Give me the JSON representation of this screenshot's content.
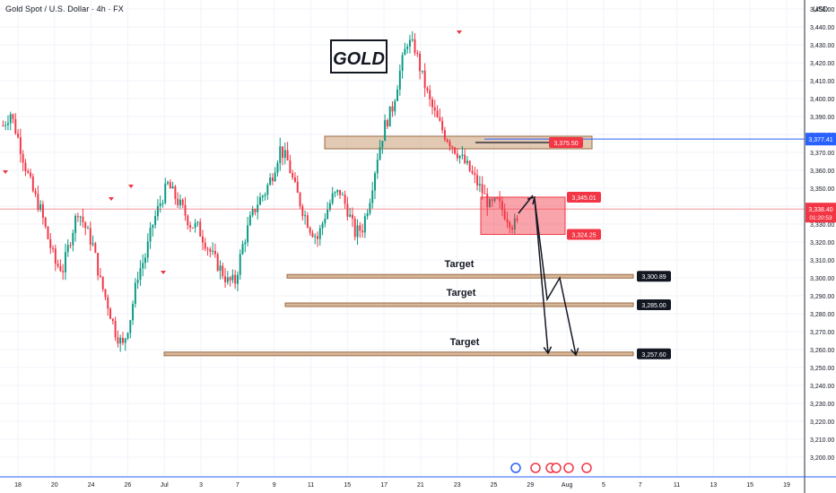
{
  "header": {
    "symbol_line": "Gold Spot / U.S. Dollar · 4h · FX",
    "currency": "USD"
  },
  "annotation_title": "GOLD",
  "colors": {
    "bull": "#089981",
    "bear": "#f23645",
    "zone_fill": "#d7b79a",
    "zone_stroke": "#9b6a42",
    "box_fill": "#f23645",
    "blue_line": "#2962ff",
    "grid": "#f0f3fa"
  },
  "chart_data": {
    "type": "candlestick",
    "title": "",
    "xlabel": "",
    "ylabel": "",
    "ylim": [
      3195,
      3455
    ],
    "y_ticks": [
      "3,200.00",
      "3,210.00",
      "3,220.00",
      "3,230.00",
      "3,240.00",
      "3,250.00",
      "3,260.00",
      "3,270.00",
      "3,280.00",
      "3,290.00",
      "3,300.00",
      "3,310.00",
      "3,320.00",
      "3,330.00",
      "3,340.00",
      "3,350.00",
      "3,360.00",
      "3,370.00",
      "3,380.00",
      "3,390.00",
      "3,400.00",
      "3,410.00",
      "3,420.00",
      "3,430.00",
      "3,440.00",
      "3,450.00"
    ],
    "x_ticks": [
      "18",
      "20",
      "24",
      "26",
      "Jul",
      "3",
      "7",
      "9",
      "11",
      "15",
      "17",
      "21",
      "23",
      "25",
      "29",
      "Aug",
      "5",
      "7",
      "11",
      "13",
      "15",
      "19"
    ],
    "ohlc_anchor_closes": [
      3385,
      3392,
      3378,
      3362,
      3348,
      3338,
      3322,
      3308,
      3305,
      3322,
      3338,
      3328,
      3318,
      3298,
      3285,
      3270,
      3262,
      3278,
      3302,
      3312,
      3330,
      3342,
      3352,
      3345,
      3338,
      3330,
      3328,
      3320,
      3312,
      3305,
      3298,
      3298,
      3318,
      3332,
      3342,
      3348,
      3358,
      3372,
      3365,
      3350,
      3338,
      3328,
      3322,
      3335,
      3345,
      3348,
      3338,
      3325,
      3328,
      3345,
      3368,
      3385,
      3395,
      3415,
      3432,
      3428,
      3412,
      3398,
      3388,
      3380,
      3374,
      3368,
      3362,
      3355,
      3348,
      3340,
      3342,
      3336,
      3330
    ],
    "levels": [
      {
        "label": "3,377.41",
        "value": 3377.41,
        "style": "blue"
      },
      {
        "label": "3,375.50",
        "value": 3375.5,
        "style": "red"
      },
      {
        "label": "3,345.01",
        "value": 3345.01,
        "style": "red"
      },
      {
        "label": "3,338.40",
        "value": 3338.4,
        "style": "current"
      },
      {
        "label": "3,324.25",
        "value": 3324.25,
        "style": "red"
      },
      {
        "label": "3,300.89",
        "value": 3300.89,
        "style": "dark"
      },
      {
        "label": "3,285.00",
        "value": 3285.0,
        "style": "dark"
      },
      {
        "label": "3,257.60",
        "value": 3257.6,
        "style": "dark"
      }
    ],
    "countdown": "01:20:53",
    "targets": [
      {
        "label": "Target",
        "value": 3300.89
      },
      {
        "label": "Target",
        "value": 3285.0
      },
      {
        "label": "Target",
        "value": 3257.6
      }
    ],
    "resistance_zone": [
      3372,
      3379
    ],
    "sell_box": [
      3324.25,
      3345.01
    ],
    "grid": true
  }
}
